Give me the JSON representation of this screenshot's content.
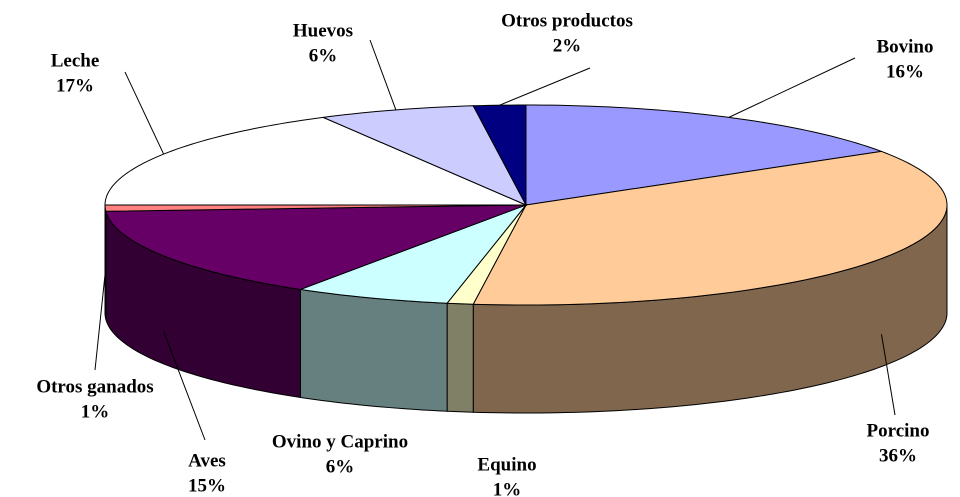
{
  "chart_data": {
    "type": "pie3d",
    "categories": [
      "Bovino",
      "Porcino",
      "Equino",
      "Ovino y Caprino",
      "Aves",
      "Otros ganados",
      "Leche",
      "Huevos",
      "Otros productos"
    ],
    "values": [
      16,
      36,
      1,
      6,
      15,
      1,
      17,
      6,
      2
    ],
    "value_labels": [
      "16%",
      "36%",
      "1%",
      "6%",
      "15%",
      "1%",
      "17%",
      "6%",
      "2%"
    ],
    "colors": [
      "#9999ff",
      "#ffcc99",
      "#ffffcc",
      "#ccffff",
      "#660066",
      "#ff8080",
      "#ffffff",
      "#ccccff",
      "#000080"
    ]
  }
}
